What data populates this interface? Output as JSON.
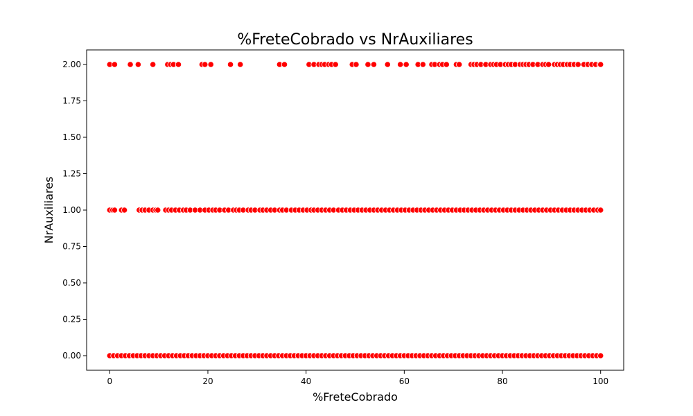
{
  "chart_data": {
    "type": "scatter",
    "title": "%FreteCobrado vs NrAuxiliares",
    "xlabel": "%FreteCobrado",
    "ylabel": "NrAuxiliares",
    "xlim": [
      -4.7,
      104.7
    ],
    "ylim": [
      -0.1,
      2.1
    ],
    "xticks": [
      "0",
      "20",
      "40",
      "60",
      "80",
      "100"
    ],
    "yticks": [
      "0.00",
      "0.25",
      "0.50",
      "0.75",
      "1.00",
      "1.25",
      "1.50",
      "1.75",
      "2.00"
    ],
    "grid": false,
    "marker_color": "#ff0000",
    "marker_edge_color": "#ffffff",
    "series": [
      {
        "y": 2,
        "x": [
          0,
          1,
          4.2,
          5.8,
          8.8,
          11.8,
          12.4,
          13,
          14,
          18.8,
          19.4,
          20.6,
          24.6,
          26.6,
          34.6,
          35.6,
          40.6,
          41.6,
          42.6,
          43.2,
          43.8,
          44.6,
          45.2,
          46,
          49.4,
          50.2,
          52.6,
          53.8,
          56.6,
          59.2,
          60.4,
          62.8,
          63.8,
          65.6,
          66.2,
          67.2,
          67.8,
          68.6,
          70.6,
          71.2,
          73.6,
          74.2,
          74.8,
          75.6,
          76.6,
          77.6,
          78.2,
          78.8,
          79.6,
          80.6,
          81.2,
          81.8,
          82.6,
          83.6,
          84.2,
          84.8,
          85.4,
          86.2,
          87.2,
          88.2,
          88.8,
          89.4,
          90.6,
          91.2,
          91.8,
          92.4,
          93.2,
          93.8,
          94.6,
          95.4,
          96.6,
          97.4,
          98.2,
          99,
          99.8,
          100
        ]
      },
      {
        "y": 1,
        "x": [
          0,
          0.6,
          1,
          2.4,
          3,
          6,
          6.6,
          7.2,
          8,
          8.8,
          9.4,
          9.8,
          11.4,
          12,
          12.6,
          13.4,
          14.2,
          15,
          15.6,
          16.4,
          17.4,
          18.4,
          19.4,
          20.2,
          21,
          21.6,
          22.4,
          23.4,
          24.2,
          25.2,
          25.8,
          26.4,
          27.2,
          28.2,
          28.8,
          29.6,
          30.6,
          31.2,
          32,
          32.8,
          33.6,
          34.6,
          35.2,
          36,
          37,
          37.8,
          38.6,
          39.4,
          40.2,
          41,
          41.6,
          42.4,
          43.2,
          44,
          44.8,
          45.6,
          46.6,
          47.4,
          48.2,
          49,
          49.8,
          50.6,
          51.4,
          52.2,
          53,
          53.8,
          54.6,
          55.4,
          56.2,
          57,
          57.8,
          58.6,
          59.4,
          60.2,
          61,
          61.8,
          62.6,
          63.4,
          64.2,
          65,
          65.8,
          66.6,
          67.4,
          68.2,
          69,
          69.8,
          70.6,
          71.4,
          72.2,
          73,
          73.8,
          74.6,
          75.4,
          76.2,
          77,
          77.8,
          78.6,
          79.4,
          80.2,
          81,
          81.8,
          82.6,
          83.4,
          84.2,
          85,
          85.8,
          86.6,
          87.4,
          88.2,
          89,
          89.8,
          90.6,
          91.4,
          92.2,
          93,
          93.8,
          94.6,
          95.4,
          96.2,
          97,
          97.8,
          98.6,
          99.4,
          100
        ]
      },
      {
        "y": 0,
        "x": [
          0,
          0.8,
          1.6,
          2.4,
          3.2,
          4,
          4.8,
          5.6,
          6.4,
          7.2,
          8,
          8.8,
          9.6,
          10.4,
          11.2,
          12,
          12.8,
          13.6,
          14.4,
          15.2,
          16,
          16.8,
          17.6,
          18.4,
          19.2,
          20,
          20.8,
          21.6,
          22.4,
          23.2,
          24,
          24.8,
          25.6,
          26.4,
          27.2,
          28,
          28.8,
          29.6,
          30.4,
          31.2,
          32,
          32.8,
          33.6,
          34.4,
          35.2,
          36,
          36.8,
          37.6,
          38.4,
          39.2,
          40,
          40.8,
          41.6,
          42.4,
          43.2,
          44,
          44.8,
          45.6,
          46.4,
          47.2,
          48,
          48.8,
          49.6,
          50.4,
          51.2,
          52,
          52.8,
          53.6,
          54.4,
          55.2,
          56,
          56.8,
          57.6,
          58.4,
          59.2,
          60,
          60.8,
          61.6,
          62.4,
          63.2,
          64,
          64.8,
          65.6,
          66.4,
          67.2,
          68,
          68.8,
          69.6,
          70.4,
          71.2,
          72,
          72.8,
          73.6,
          74.4,
          75.2,
          76,
          76.8,
          77.6,
          78.4,
          79.2,
          80,
          80.8,
          81.6,
          82.4,
          83.2,
          84,
          84.8,
          85.6,
          86.4,
          87.2,
          88,
          88.8,
          89.6,
          90.4,
          91.2,
          92,
          92.8,
          93.6,
          94.4,
          95.2,
          96,
          96.8,
          97.6,
          98.4,
          99.2,
          100
        ]
      }
    ]
  }
}
